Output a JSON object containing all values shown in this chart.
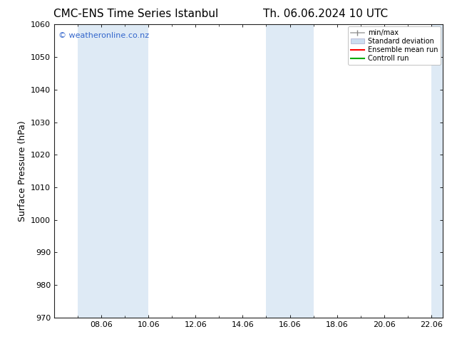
{
  "title_left": "CMC-ENS Time Series Istanbul",
  "title_right": "Th. 06.06.2024 10 UTC",
  "ylabel": "Surface Pressure (hPa)",
  "ylim": [
    970,
    1060
  ],
  "yticks": [
    970,
    980,
    990,
    1000,
    1010,
    1020,
    1030,
    1040,
    1050,
    1060
  ],
  "xlim_num": [
    6.0,
    22.5
  ],
  "xtick_labels": [
    "08.06",
    "10.06",
    "12.06",
    "14.06",
    "16.06",
    "18.06",
    "20.06",
    "22.06"
  ],
  "xtick_positions": [
    8.0,
    10.0,
    12.0,
    14.0,
    16.0,
    18.0,
    20.0,
    22.0
  ],
  "background_color": "#ffffff",
  "plot_bg_color": "#ffffff",
  "shaded_regions": [
    {
      "xmin": 7.0,
      "xmax": 10.0,
      "color": "#deeaf5"
    },
    {
      "xmin": 15.0,
      "xmax": 17.0,
      "color": "#deeaf5"
    },
    {
      "xmin": 22.0,
      "xmax": 22.5,
      "color": "#deeaf5"
    }
  ],
  "watermark_text": "© weatheronline.co.nz",
  "watermark_color": "#3366cc",
  "watermark_fontsize": 8,
  "legend_items": [
    {
      "label": "min/max",
      "color": "#aaaaaa",
      "style": "minmax"
    },
    {
      "label": "Standard deviation",
      "color": "#ccddf0",
      "style": "stddev"
    },
    {
      "label": "Ensemble mean run",
      "color": "#ff0000",
      "style": "line"
    },
    {
      "label": "Controll run",
      "color": "#00aa00",
      "style": "line"
    }
  ],
  "title_fontsize": 11,
  "tick_fontsize": 8,
  "label_fontsize": 9
}
